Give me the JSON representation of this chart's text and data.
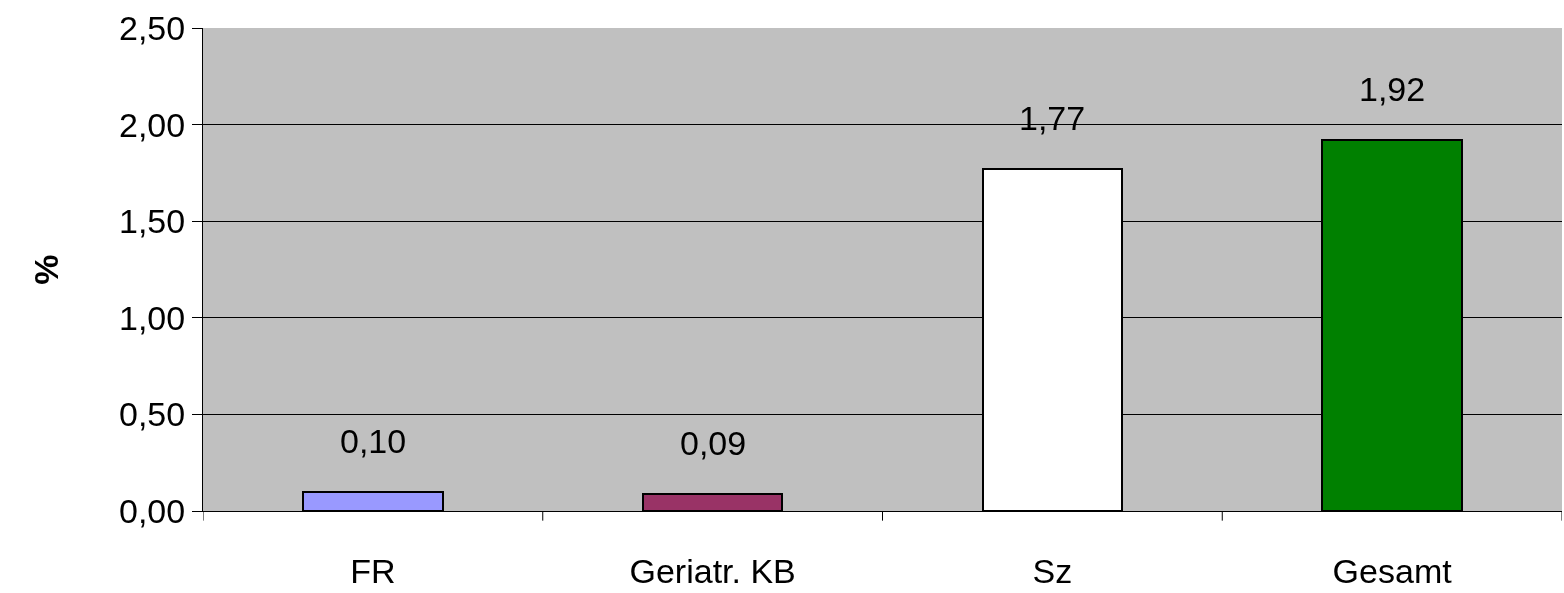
{
  "chart_data": {
    "type": "bar",
    "ylabel": "%",
    "categories": [
      "FR",
      "Geriatr. KB",
      "Sz",
      "Gesamt"
    ],
    "values": [
      0.1,
      0.09,
      1.77,
      1.92
    ],
    "colors": [
      "#9999ff",
      "#993366",
      "#ffffff",
      "#008000"
    ],
    "value_labels": [
      "0,10",
      "0,09",
      "1,77",
      "1,92"
    ],
    "ylim": [
      0,
      2.5
    ],
    "yticks": [
      {
        "value": 0,
        "label": "0,00"
      },
      {
        "value": 0.5,
        "label": "0,50"
      },
      {
        "value": 1,
        "label": "1,00"
      },
      {
        "value": 1.5,
        "label": "1,50"
      },
      {
        "value": 2,
        "label": "2,00"
      },
      {
        "value": 2.5,
        "label": "2,50"
      }
    ],
    "grid": "y"
  }
}
